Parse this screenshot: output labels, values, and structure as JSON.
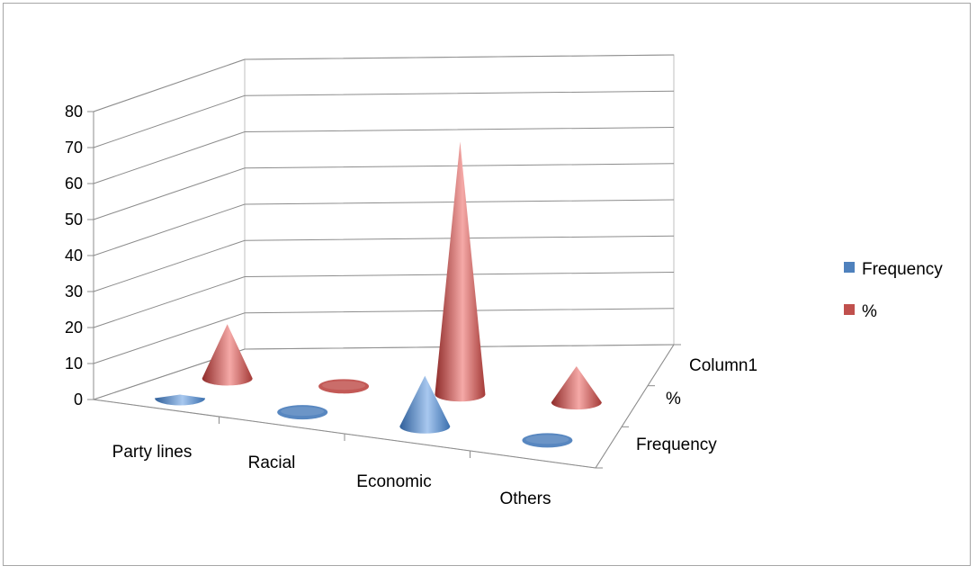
{
  "chart_data": {
    "type": "3d-cone",
    "title": "",
    "categories": [
      "Party lines",
      "Racial",
      "Economic",
      "Others"
    ],
    "depth_categories": [
      "Frequency",
      "%",
      "Column1"
    ],
    "series": [
      {
        "name": "Frequency",
        "color": "#4f81bd",
        "values": [
          1,
          0,
          14,
          0
        ]
      },
      {
        "name": "%",
        "color": "#c0504d",
        "values": [
          15,
          0,
          70,
          10
        ]
      }
    ],
    "ylim": [
      0,
      80
    ],
    "yticks": [
      0,
      10,
      20,
      30,
      40,
      50,
      60,
      70,
      80
    ],
    "grid": true,
    "legend_position": "right"
  },
  "legend": {
    "items": [
      {
        "label": "Frequency",
        "color": "#4f81bd"
      },
      {
        "label": "%",
        "color": "#c0504d"
      }
    ]
  }
}
